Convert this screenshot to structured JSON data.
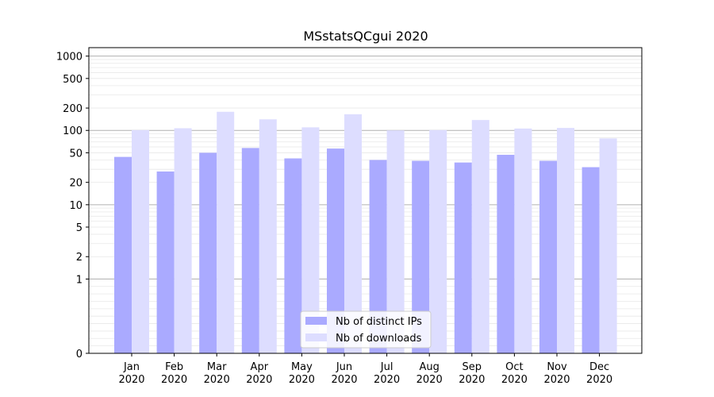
{
  "chart_data": {
    "type": "bar",
    "title": "MSstatsQCgui 2020",
    "xlabel": "",
    "ylabel": "",
    "y_scale": "symlog",
    "ylim": [
      0,
      1300
    ],
    "y_ticks": [
      0,
      1,
      2,
      5,
      10,
      20,
      50,
      100,
      200,
      500,
      1000
    ],
    "grid": true,
    "legend_position": "bottom-center",
    "categories": [
      "Jan\n2020",
      "Feb\n2020",
      "Mar\n2020",
      "Apr\n2020",
      "May\n2020",
      "Jun\n2020",
      "Jul\n2020",
      "Aug\n2020",
      "Sep\n2020",
      "Oct\n2020",
      "Nov\n2020",
      "Dec\n2020"
    ],
    "series": [
      {
        "name": "Nb of distinct IPs",
        "color": "#aaaaff",
        "values": [
          44,
          28,
          50,
          58,
          42,
          57,
          40,
          39,
          37,
          47,
          39,
          32
        ]
      },
      {
        "name": "Nb of downloads",
        "color": "#ddddff",
        "values": [
          101,
          107,
          178,
          141,
          110,
          165,
          100,
          101,
          138,
          106,
          108,
          78
        ]
      }
    ]
  }
}
